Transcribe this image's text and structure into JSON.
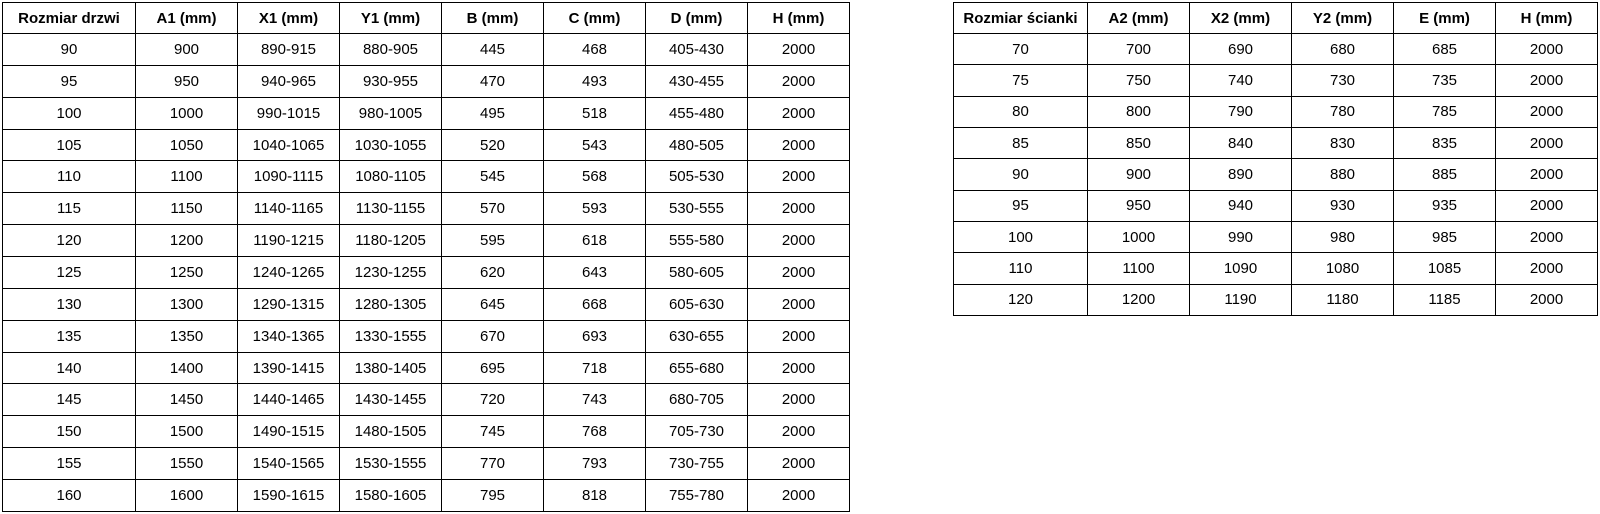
{
  "tables": [
    {
      "id": "door",
      "headers": [
        "Rozmiar drzwi",
        "A1 (mm)",
        "X1 (mm)",
        "Y1 (mm)",
        "B (mm)",
        "C (mm)",
        "D (mm)",
        "H (mm)"
      ],
      "rows": [
        [
          "90",
          "900",
          "890-915",
          "880-905",
          "445",
          "468",
          "405-430",
          "2000"
        ],
        [
          "95",
          "950",
          "940-965",
          "930-955",
          "470",
          "493",
          "430-455",
          "2000"
        ],
        [
          "100",
          "1000",
          "990-1015",
          "980-1005",
          "495",
          "518",
          "455-480",
          "2000"
        ],
        [
          "105",
          "1050",
          "1040-1065",
          "1030-1055",
          "520",
          "543",
          "480-505",
          "2000"
        ],
        [
          "110",
          "1100",
          "1090-1115",
          "1080-1105",
          "545",
          "568",
          "505-530",
          "2000"
        ],
        [
          "115",
          "1150",
          "1140-1165",
          "1130-1155",
          "570",
          "593",
          "530-555",
          "2000"
        ],
        [
          "120",
          "1200",
          "1190-1215",
          "1180-1205",
          "595",
          "618",
          "555-580",
          "2000"
        ],
        [
          "125",
          "1250",
          "1240-1265",
          "1230-1255",
          "620",
          "643",
          "580-605",
          "2000"
        ],
        [
          "130",
          "1300",
          "1290-1315",
          "1280-1305",
          "645",
          "668",
          "605-630",
          "2000"
        ],
        [
          "135",
          "1350",
          "1340-1365",
          "1330-1555",
          "670",
          "693",
          "630-655",
          "2000"
        ],
        [
          "140",
          "1400",
          "1390-1415",
          "1380-1405",
          "695",
          "718",
          "655-680",
          "2000"
        ],
        [
          "145",
          "1450",
          "1440-1465",
          "1430-1455",
          "720",
          "743",
          "680-705",
          "2000"
        ],
        [
          "150",
          "1500",
          "1490-1515",
          "1480-1505",
          "745",
          "768",
          "705-730",
          "2000"
        ],
        [
          "155",
          "1550",
          "1540-1565",
          "1530-1555",
          "770",
          "793",
          "730-755",
          "2000"
        ],
        [
          "160",
          "1600",
          "1590-1615",
          "1580-1605",
          "795",
          "818",
          "755-780",
          "2000"
        ]
      ]
    },
    {
      "id": "wall",
      "headers": [
        "Rozmiar ścianki",
        "A2 (mm)",
        "X2 (mm)",
        "Y2 (mm)",
        "E (mm)",
        "H (mm)"
      ],
      "rows": [
        [
          "70",
          "700",
          "690",
          "680",
          "685",
          "2000"
        ],
        [
          "75",
          "750",
          "740",
          "730",
          "735",
          "2000"
        ],
        [
          "80",
          "800",
          "790",
          "780",
          "785",
          "2000"
        ],
        [
          "85",
          "850",
          "840",
          "830",
          "835",
          "2000"
        ],
        [
          "90",
          "900",
          "890",
          "880",
          "885",
          "2000"
        ],
        [
          "95",
          "950",
          "940",
          "930",
          "935",
          "2000"
        ],
        [
          "100",
          "1000",
          "990",
          "980",
          "985",
          "2000"
        ],
        [
          "110",
          "1100",
          "1090",
          "1080",
          "1085",
          "2000"
        ],
        [
          "120",
          "1200",
          "1190",
          "1180",
          "1185",
          "2000"
        ]
      ]
    }
  ]
}
